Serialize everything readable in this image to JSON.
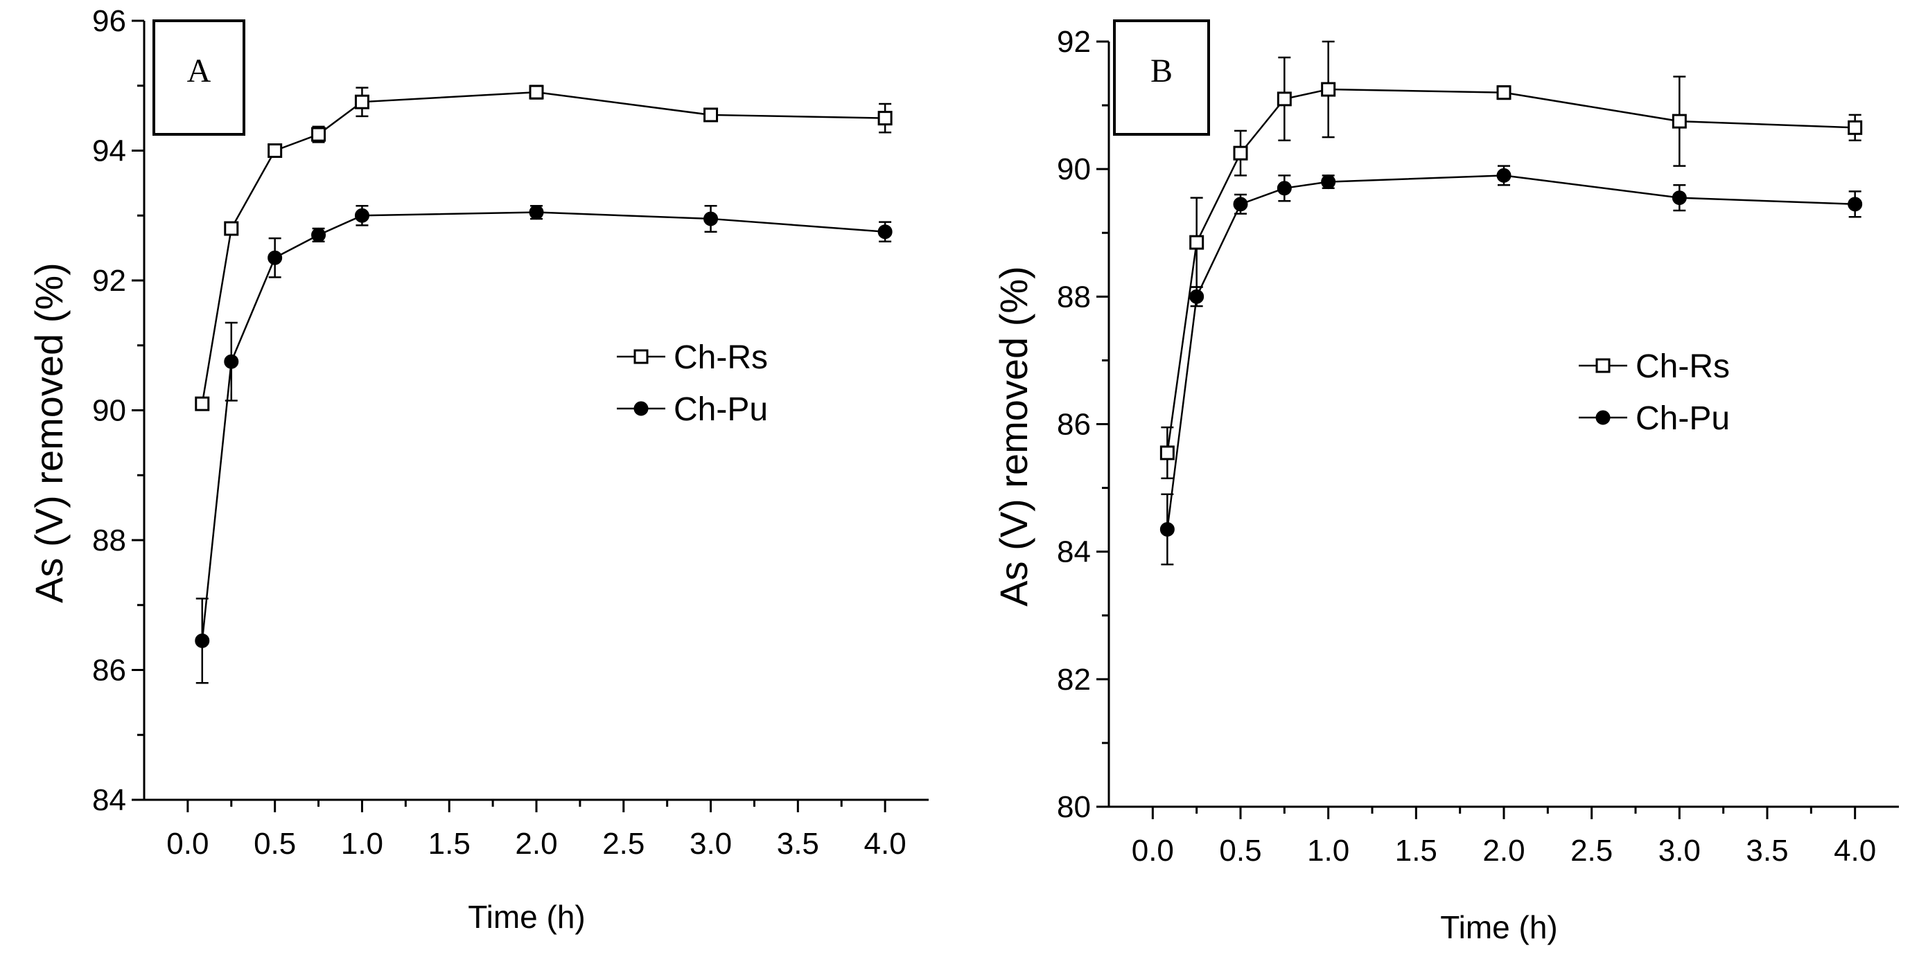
{
  "chart_data": [
    {
      "type": "line",
      "panel_label": "A",
      "xlabel": "Time (h)",
      "ylabel": "As (V) removed (%)",
      "xlim": [
        -0.25,
        4.25
      ],
      "ylim": [
        84,
        96
      ],
      "x_ticks": [
        "0.0",
        "0.5",
        "1.0",
        "1.5",
        "2.0",
        "2.5",
        "3.0",
        "3.5",
        "4.0"
      ],
      "y_ticks": [
        "84",
        "86",
        "88",
        "90",
        "92",
        "94",
        "96"
      ],
      "legend_position": "center-right",
      "grid": false,
      "series": [
        {
          "name": "Ch-Rs",
          "marker": "open-square",
          "x": [
            0.083,
            0.25,
            0.5,
            0.75,
            1.0,
            2.0,
            3.0,
            4.0
          ],
          "y": [
            90.1,
            92.8,
            94.0,
            94.25,
            94.75,
            94.9,
            94.55,
            94.5
          ],
          "err": [
            0.05,
            0.08,
            0.08,
            0.12,
            0.22,
            0.1,
            0.07,
            0.22
          ]
        },
        {
          "name": "Ch-Pu",
          "marker": "filled-circle",
          "x": [
            0.083,
            0.25,
            0.5,
            0.75,
            1.0,
            2.0,
            3.0,
            4.0
          ],
          "y": [
            86.45,
            90.75,
            92.35,
            92.7,
            93.0,
            93.05,
            92.95,
            92.75
          ],
          "err": [
            0.65,
            0.6,
            0.3,
            0.1,
            0.15,
            0.1,
            0.2,
            0.15
          ]
        }
      ]
    },
    {
      "type": "line",
      "panel_label": "B",
      "xlabel": "Time (h)",
      "ylabel": "As (V) removed (%)",
      "xlim": [
        -0.25,
        4.25
      ],
      "ylim": [
        80,
        92
      ],
      "x_ticks": [
        "0.0",
        "0.5",
        "1.0",
        "1.5",
        "2.0",
        "2.5",
        "3.0",
        "3.5",
        "4.0"
      ],
      "y_ticks": [
        "80",
        "82",
        "84",
        "86",
        "88",
        "90",
        "92"
      ],
      "legend_position": "center-right",
      "grid": false,
      "series": [
        {
          "name": "Ch-Rs",
          "marker": "open-square",
          "x": [
            0.083,
            0.25,
            0.5,
            0.75,
            1.0,
            2.0,
            3.0,
            4.0
          ],
          "y": [
            85.55,
            88.85,
            90.25,
            91.1,
            91.25,
            91.2,
            90.75,
            90.65
          ],
          "err": [
            0.4,
            0.7,
            0.35,
            0.65,
            0.75,
            0.1,
            0.7,
            0.2
          ]
        },
        {
          "name": "Ch-Pu",
          "marker": "filled-circle",
          "x": [
            0.083,
            0.25,
            0.5,
            0.75,
            1.0,
            2.0,
            3.0,
            4.0
          ],
          "y": [
            84.35,
            88.0,
            89.45,
            89.7,
            89.8,
            89.9,
            89.55,
            89.45
          ],
          "err": [
            0.55,
            0.15,
            0.15,
            0.2,
            0.1,
            0.15,
            0.2,
            0.2
          ]
        }
      ]
    }
  ]
}
